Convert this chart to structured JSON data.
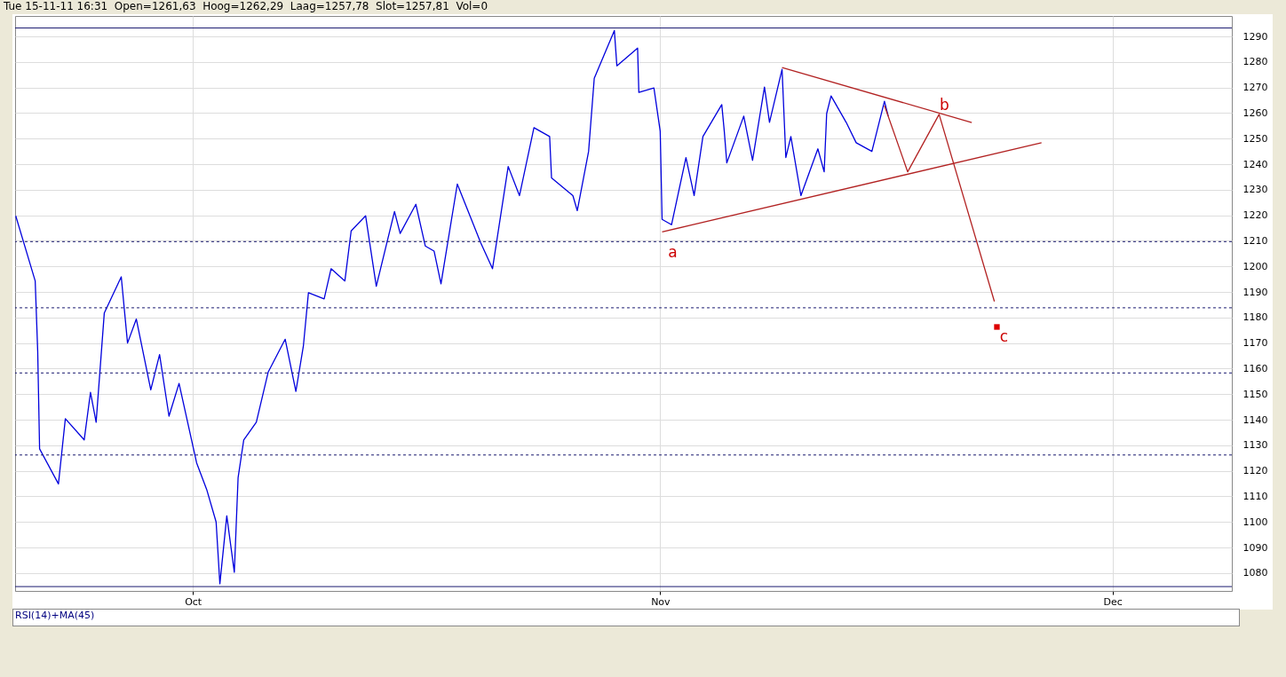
{
  "chart_data": {
    "type": "line",
    "annotations": [
      "Tue 15-11-11 16:31  Open=1261,63  Hoog=1262,29  Laag=1257,78  Slot=1257,81  Vol=0",
      "RSI(14)+MA(45)",
      {
        "text": "a",
        "x": "--11-01T03:00",
        "y": 1213.5
      },
      {
        "text": "b",
        "x": "--11-19T12:00",
        "y": 1259.5
      },
      {
        "text": "c",
        "x": "--11-23T08:00",
        "y": 1176.3
      }
    ],
    "xlim": [
      "--09-19T05:00",
      "--12-08T22:00"
    ],
    "xticks": [
      {
        "value": "--10-01T00:00",
        "label": "Oct"
      },
      {
        "value": "--11-01T00:00",
        "label": "Nov"
      },
      {
        "value": "--12-01T00:00",
        "label": "Dec"
      }
    ],
    "ylim": [
      1073,
      1298
    ],
    "yticks": [
      1080,
      1090,
      1100,
      1110,
      1120,
      1130,
      1140,
      1150,
      1160,
      1170,
      1180,
      1190,
      1200,
      1210,
      1220,
      1230,
      1240,
      1250,
      1260,
      1270,
      1280,
      1290
    ],
    "grid": true,
    "series": [
      {
        "color": "#0000dd",
        "x": [
          "--09-19T06:00",
          "--09-20T13:00",
          "--09-20T17:00",
          "--09-20T20:00",
          "--09-22T02:00",
          "--09-22T13:00",
          "--09-23T19:00",
          "--09-24T05:00",
          "--09-24T14:00",
          "--09-25T03:00",
          "--09-26T06:00",
          "--09-26T16:00",
          "--09-27T06:00",
          "--09-28T05:00",
          "--09-28T19:00",
          "--09-29T10:00",
          "--09-30T02:00",
          "--10-01T06:00",
          "--10-01T22:00",
          "--10-02T13:00",
          "--10-02T19:00",
          "--10-03T06:00",
          "--10-03T18:00",
          "--10-04T00:00",
          "--10-04T09:00",
          "--10-05T05:00",
          "--10-06T00:00",
          "--10-07T03:00",
          "--10-07T20:00",
          "--10-08T08:00",
          "--10-08T16:00",
          "--10-09T17:00",
          "--10-10T04:00",
          "--10-11T02:00",
          "--10-11T12:00",
          "--10-12T11:00",
          "--10-13T04:00",
          "--10-14T09:00",
          "--10-14T18:00",
          "--10-15T19:00",
          "--10-16T10:00",
          "--10-17T00:00",
          "--10-17T11:00",
          "--10-18T13:00",
          "--10-20T02:00",
          "--10-20T21:00",
          "--10-21T22:00",
          "--10-22T16:00",
          "--10-23T15:00",
          "--10-24T16:00",
          "--10-24T19:00",
          "--10-26T05:00",
          "--10-26T12:00",
          "--10-27T06:00",
          "--10-27T15:00",
          "--10-28T23:00",
          "--10-29T03:00",
          "--10-30T12:00",
          "--10-30T14:00",
          "--10-31T14:00",
          "--11-01T00:00",
          "--11-01T03:00",
          "--11-01T18:00",
          "--11-02T17:00",
          "--11-03T06:00",
          "--11-03T20:00",
          "--11-05T02:00",
          "--11-05T06:00",
          "--11-05T10:00",
          "--11-06T13:00",
          "--11-07T03:00",
          "--11-07T22:00",
          "--11-08T06:00",
          "--11-09T02:00",
          "--11-09T08:00",
          "--11-09T16:00",
          "--11-10T08:00",
          "--11-11T11:00",
          "--11-11T21:00",
          "--11-12T01:00",
          "--11-12T08:00",
          "--11-13T08:00",
          "--11-14T00:00",
          "--11-15T01:00",
          "--11-15T21:00",
          "--11-16T03:00"
        ],
        "values": [
          1219.8,
          1194.3,
          1166.7,
          1128.6,
          1114.9,
          1140.4,
          1132.1,
          1150.7,
          1139.0,
          1181.8,
          1195.9,
          1170.0,
          1179.4,
          1151.7,
          1165.5,
          1141.4,
          1154.2,
          1123.1,
          1112.7,
          1100.0,
          1075.8,
          1102.4,
          1080.3,
          1117.3,
          1132.1,
          1139.0,
          1158.7,
          1171.5,
          1151.1,
          1169.0,
          1189.7,
          1187.3,
          1199.1,
          1194.3,
          1213.9,
          1219.8,
          1192.2,
          1221.5,
          1212.9,
          1224.3,
          1208.0,
          1206.0,
          1193.2,
          1232.2,
          1209.4,
          1199.1,
          1239.1,
          1227.7,
          1254.3,
          1250.8,
          1234.6,
          1227.7,
          1221.8,
          1245.0,
          1273.6,
          1292.3,
          1278.5,
          1285.4,
          1268.1,
          1269.8,
          1252.9,
          1218.4,
          1216.3,
          1242.6,
          1227.7,
          1250.8,
          1263.3,
          1252.9,
          1240.5,
          1258.8,
          1241.5,
          1270.2,
          1256.4,
          1277.1,
          1242.6,
          1250.8,
          1227.7,
          1246.0,
          1237.0,
          1259.8,
          1266.7,
          1256.4,
          1248.4,
          1245.0,
          1264.6,
          1258.8
        ]
      },
      {
        "type": "line",
        "color": "#b22222",
        "x": [
          "--11-09T02:00",
          "--11-21T16:00"
        ],
        "values": [
          1277.8,
          1256.3
        ]
      },
      {
        "type": "line",
        "color": "#b22222",
        "x": [
          "--11-01T03:00",
          "--11-26T07:00"
        ],
        "values": [
          1213.5,
          1248.4
        ]
      },
      {
        "type": "line",
        "color": "#b22222",
        "x": [
          "--11-15T21:00",
          "--11-17T10:00",
          "--11-19T12:00",
          "--11-23T04:00"
        ],
        "values": [
          1262.9,
          1237.0,
          1259.5,
          1186.3
        ]
      },
      {
        "type": "scatter",
        "marker": "square",
        "color": "#dd0000",
        "x": [
          "--11-23T08:00"
        ],
        "values": [
          1176.3
        ]
      }
    ],
    "ref_lines": [
      {
        "axis": "y",
        "value": 1293.3,
        "color": "#1a1a70",
        "line_style": "solid"
      },
      {
        "axis": "y",
        "value": 1209.7,
        "color": "#1a1a70",
        "line_style": "dashed"
      },
      {
        "axis": "y",
        "value": 1183.8,
        "color": "#1a1a70",
        "line_style": "dashed"
      },
      {
        "axis": "y",
        "value": 1158.3,
        "color": "#1a1a70",
        "line_style": "dashed"
      },
      {
        "axis": "y",
        "value": 1126.2,
        "color": "#1a1a70",
        "line_style": "dashed"
      },
      {
        "axis": "y",
        "value": 1074.7,
        "color": "#1a1a70",
        "line_style": "solid"
      }
    ]
  }
}
